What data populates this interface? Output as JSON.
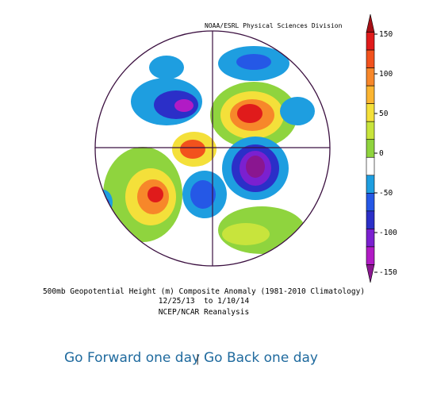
{
  "header": {
    "credit": "NOAA/ESRL Physical Sciences Division"
  },
  "caption": {
    "title": "500mb Geopotential Height (m) Composite Anomaly (1981-2010 Climatology)",
    "dates": "12/25/13  to 1/10/14",
    "source": "NCEP/NCAR Reanalysis"
  },
  "colorbar": {
    "ticks": [
      150,
      100,
      50,
      0,
      -50,
      -100,
      -150
    ],
    "range": [
      -150,
      150
    ],
    "colors": [
      "#a50f15",
      "#e01b1b",
      "#f2521d",
      "#f7872a",
      "#fbb531",
      "#f4e03a",
      "#c8e43c",
      "#8fd43e",
      "#ffffff",
      "#1e9ee0",
      "#2558e6",
      "#2b2fc8",
      "#7b20d0",
      "#b11bc5",
      "#8a1690"
    ]
  },
  "nav": {
    "forward": "Go Forward one day",
    "separator": "|",
    "back": "Go Back one day"
  }
}
